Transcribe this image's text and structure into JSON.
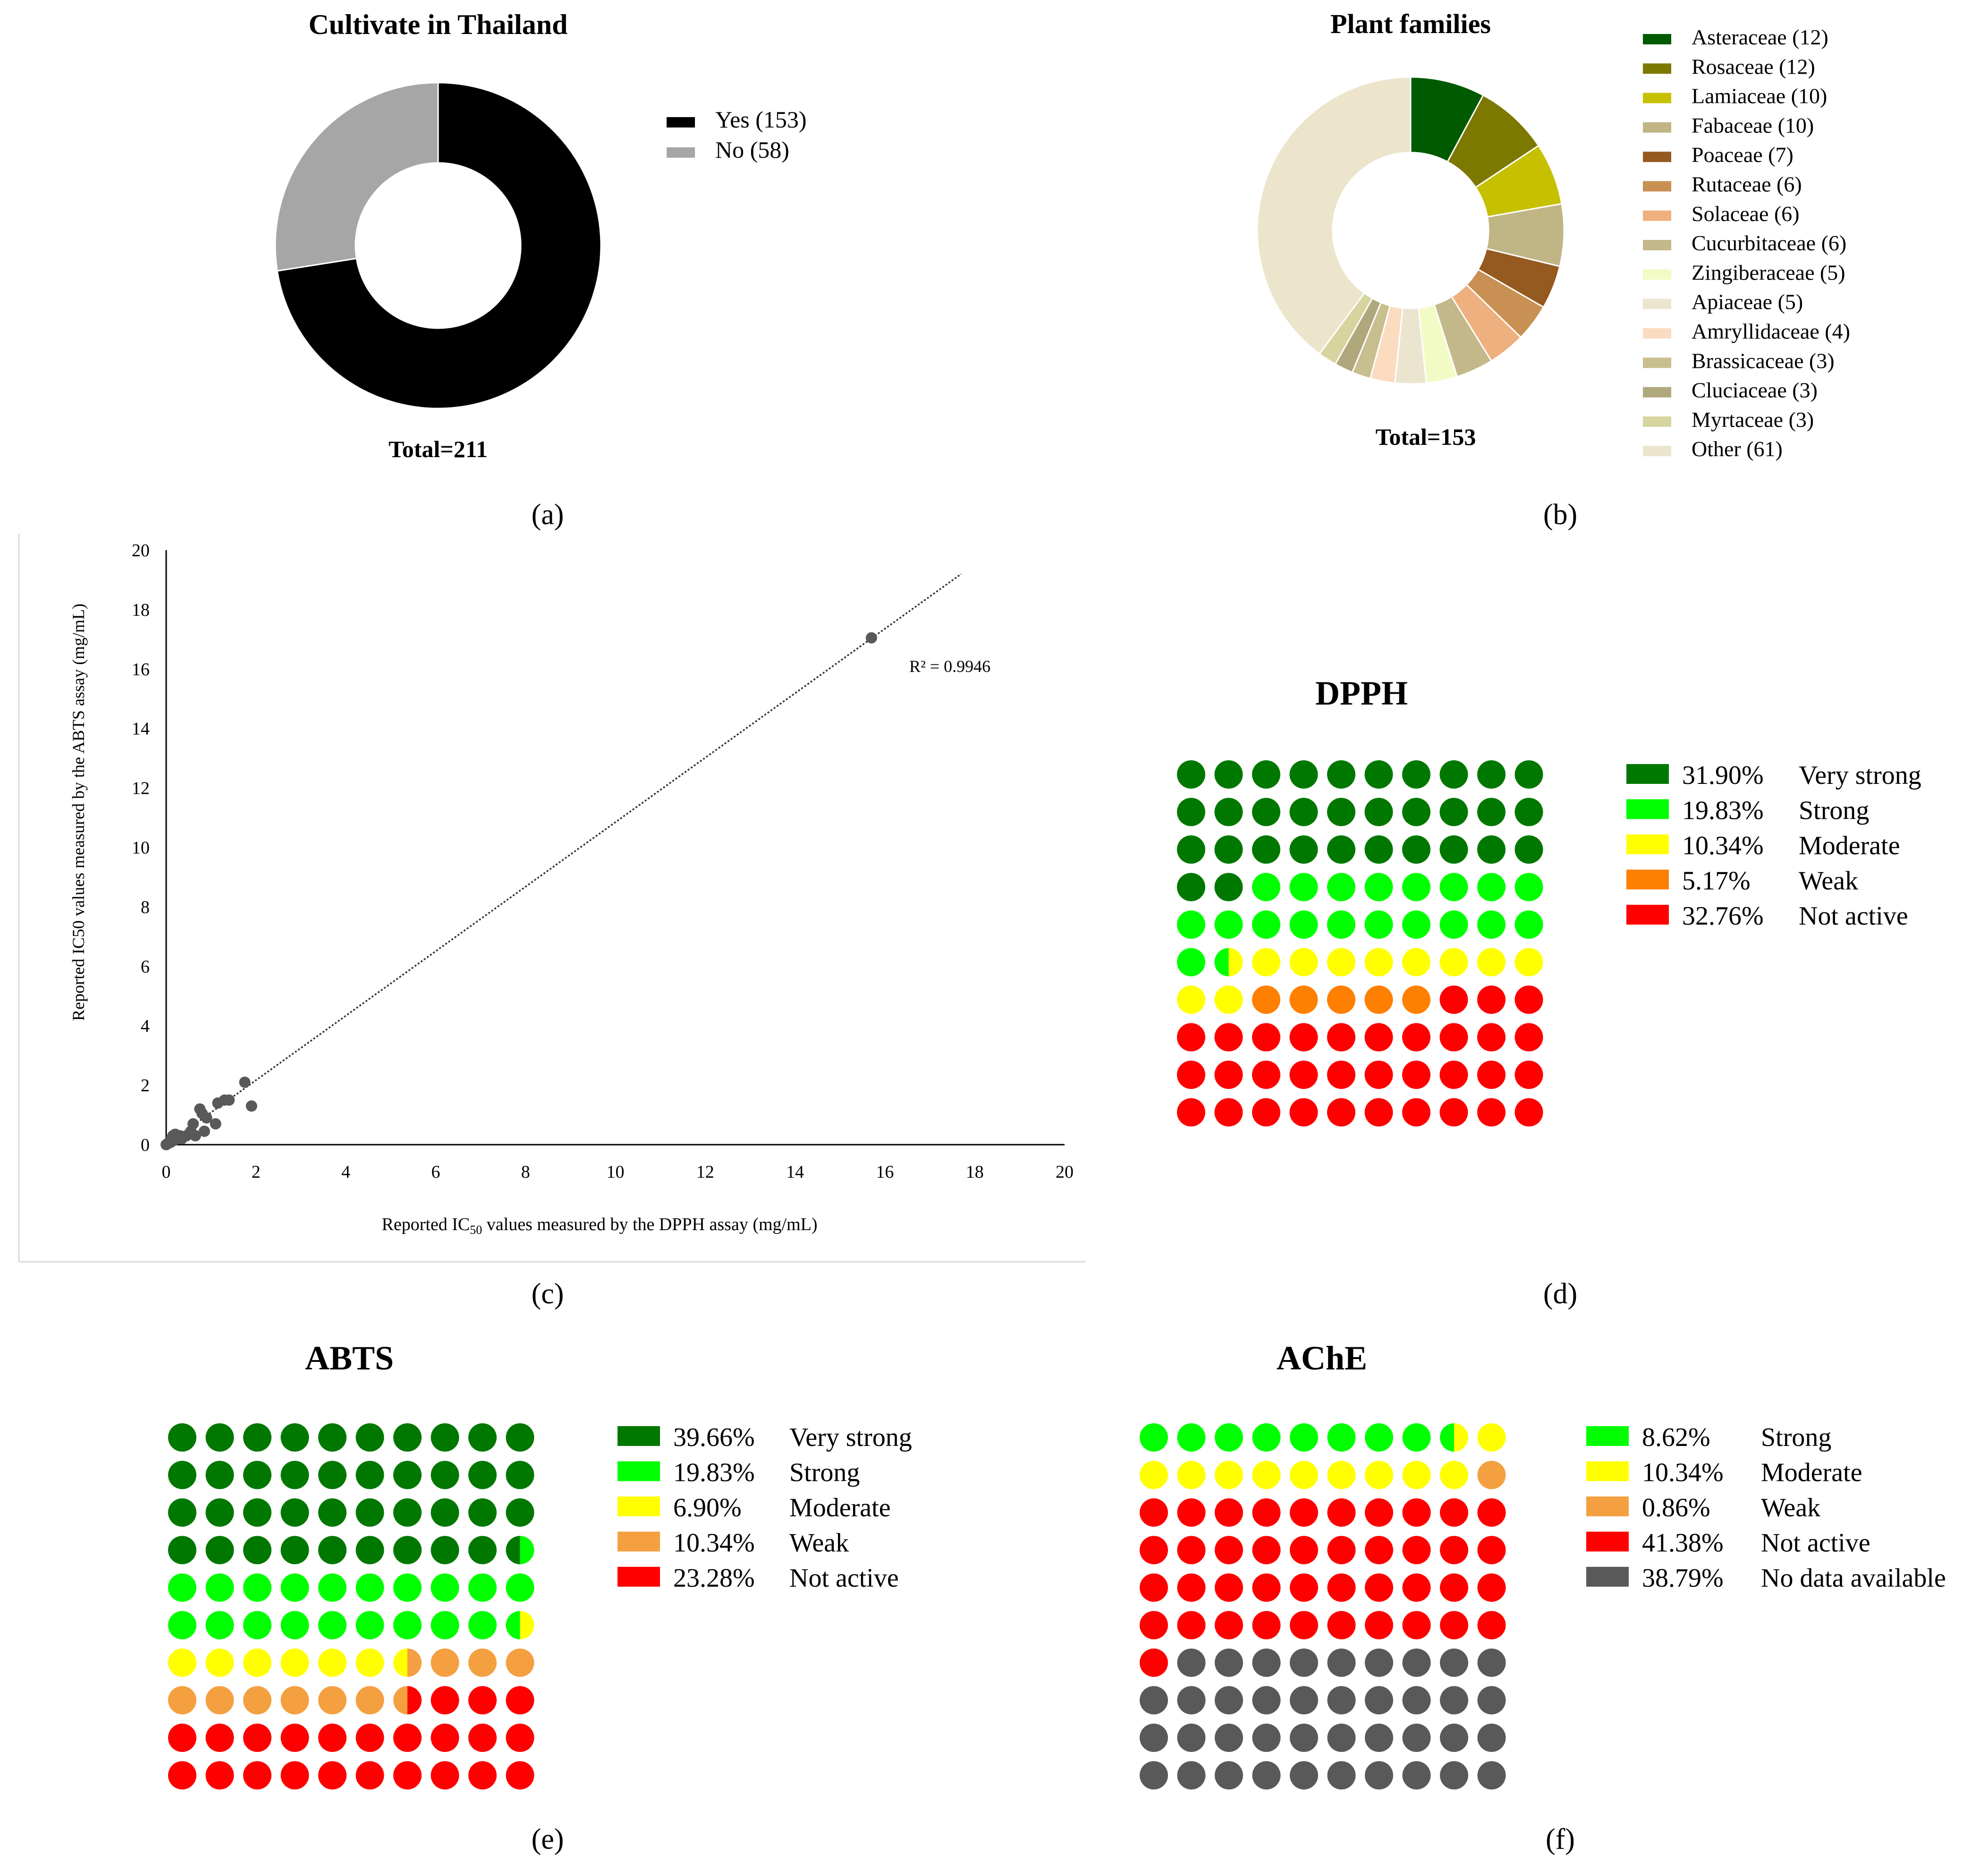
{
  "panel_labels": [
    "(a)",
    "(b)",
    "(c)",
    "(d)",
    "(e)",
    "(f)"
  ],
  "colors": {
    "very_strong": "#007800",
    "strong": "#00ff00",
    "moderate": "#ffff00",
    "weak_orange": "#ff7f00",
    "weak_light": "#f4a040",
    "not_active": "#ff0000",
    "no_data": "#595959",
    "yes": "#000000",
    "no": "#a6a6a6"
  },
  "chart_data": [
    {
      "id": "a",
      "type": "pie",
      "donut": true,
      "title": "Cultivate in Thailand",
      "total_label": "Total=211",
      "categories": [
        "Yes (153)",
        "No (58)"
      ],
      "values": [
        153,
        58
      ],
      "colors": [
        "#000000",
        "#a6a6a6"
      ],
      "legend": "right"
    },
    {
      "id": "b",
      "type": "pie",
      "donut": true,
      "title": "Plant families",
      "total_label": "Total=153",
      "categories": [
        "Asteraceae (12)",
        "Rosaceae (12)",
        "Lamiaceae (10)",
        "Fabaceae (10)",
        "Poaceae (7)",
        "Rutaceae (6)",
        "Solaceae (6)",
        "Cucurbitaceae (6)",
        "Zingiberaceae (5)",
        "Apiaceae (5)",
        "Amryllidaceae (4)",
        "Brassicaceae (3)",
        "Cluciaceae (3)",
        "Myrtaceae (3)",
        "Other (61)"
      ],
      "values": [
        12,
        12,
        10,
        10,
        7,
        6,
        6,
        6,
        5,
        5,
        4,
        3,
        3,
        3,
        61
      ],
      "colors": [
        "#005a00",
        "#7d7800",
        "#c6c000",
        "#c0b585",
        "#955a1f",
        "#c89052",
        "#eeb07e",
        "#c3b88a",
        "#f2fbc4",
        "#ebe5d0",
        "#fbdcc1",
        "#c7bf8e",
        "#b0a87d",
        "#d7d4a0",
        "#ece5cc"
      ],
      "legend": "right"
    },
    {
      "id": "c",
      "type": "scatter",
      "xlabel_pre": "Reported IC",
      "xlabel_sub": "50",
      "xlabel_post": " values measured by the DPPH assay (mg/mL)",
      "ylabel": "Reported IC50 values measured by the ABTS assay (mg/mL)",
      "xlim": [
        0,
        20
      ],
      "ylim": [
        0,
        20
      ],
      "xticks": [
        "0",
        "2",
        "4",
        "6",
        "8",
        "10",
        "12",
        "14",
        "16",
        "18",
        "20"
      ],
      "yticks": [
        "0",
        "2",
        "4",
        "6",
        "8",
        "10",
        "12",
        "14",
        "16",
        "18",
        "20"
      ],
      "annotation": "R² = 0.9946",
      "trendline": {
        "x0": 0,
        "y0": 0,
        "x1": 17.7,
        "y1": 19.2
      },
      "points": [
        {
          "x": 0.0,
          "y": 0.0
        },
        {
          "x": 0.05,
          "y": 0.05
        },
        {
          "x": 0.08,
          "y": 0.12
        },
        {
          "x": 0.1,
          "y": 0.08
        },
        {
          "x": 0.12,
          "y": 0.2
        },
        {
          "x": 0.15,
          "y": 0.3
        },
        {
          "x": 0.18,
          "y": 0.15
        },
        {
          "x": 0.2,
          "y": 0.35
        },
        {
          "x": 0.25,
          "y": 0.25
        },
        {
          "x": 0.3,
          "y": 0.3
        },
        {
          "x": 0.35,
          "y": 0.2
        },
        {
          "x": 0.45,
          "y": 0.3
        },
        {
          "x": 0.55,
          "y": 0.45
        },
        {
          "x": 0.6,
          "y": 0.7
        },
        {
          "x": 0.65,
          "y": 0.3
        },
        {
          "x": 0.75,
          "y": 1.2
        },
        {
          "x": 0.8,
          "y": 1.05
        },
        {
          "x": 0.85,
          "y": 0.45
        },
        {
          "x": 0.9,
          "y": 0.9
        },
        {
          "x": 1.1,
          "y": 0.7
        },
        {
          "x": 1.15,
          "y": 1.4
        },
        {
          "x": 1.3,
          "y": 1.5
        },
        {
          "x": 1.4,
          "y": 1.5
        },
        {
          "x": 1.75,
          "y": 2.1
        },
        {
          "x": 1.9,
          "y": 1.3
        },
        {
          "x": 15.7,
          "y": 17.05
        }
      ]
    },
    {
      "id": "d",
      "type": "waffle",
      "title": "DPPH",
      "categories": [
        {
          "percent": "31.90%",
          "name": "Very strong",
          "color": "#007800"
        },
        {
          "percent": "19.83%",
          "name": "Strong",
          "color": "#00ff00"
        },
        {
          "percent": "10.34%",
          "name": "Moderate",
          "color": "#ffff00"
        },
        {
          "percent": "5.17%",
          "name": "Weak",
          "color": "#ff7f00"
        },
        {
          "percent": "32.76%",
          "name": "Not active",
          "color": "#ff0000"
        }
      ],
      "cells": [
        "0",
        "0",
        "0",
        "0",
        "0",
        "0",
        "0",
        "0",
        "0",
        "0",
        "0",
        "0",
        "0",
        "0",
        "0",
        "0",
        "0",
        "0",
        "0",
        "0",
        "0",
        "0",
        "0",
        "0",
        "0",
        "0",
        "0",
        "0",
        "0",
        "0",
        "0",
        "0",
        "1",
        "1",
        "1",
        "1",
        "1",
        "1",
        "1",
        "1",
        "1",
        "1",
        "1",
        "1",
        "1",
        "1",
        "1",
        "1",
        "1",
        "1",
        "1",
        "1|2",
        "2",
        "2",
        "2",
        "2",
        "2",
        "2",
        "2",
        "2",
        "2",
        "2",
        "3",
        "3",
        "3",
        "3",
        "3",
        "4",
        "4",
        "4",
        "4",
        "4",
        "4",
        "4",
        "4",
        "4",
        "4",
        "4",
        "4",
        "4",
        "4",
        "4",
        "4",
        "4",
        "4",
        "4",
        "4",
        "4",
        "4",
        "4",
        "4",
        "4",
        "4",
        "4",
        "4",
        "4",
        "4",
        "4",
        "4",
        "4"
      ]
    },
    {
      "id": "e",
      "type": "waffle",
      "title": "ABTS",
      "categories": [
        {
          "percent": "39.66%",
          "name": "Very strong",
          "color": "#007800"
        },
        {
          "percent": "19.83%",
          "name": "Strong",
          "color": "#00ff00"
        },
        {
          "percent": "6.90%",
          "name": "Moderate",
          "color": "#ffff00"
        },
        {
          "percent": "10.34%",
          "name": "Weak",
          "color": "#f4a040"
        },
        {
          "percent": "23.28%",
          "name": "Not active",
          "color": "#ff0000"
        }
      ],
      "cells": [
        "0",
        "0",
        "0",
        "0",
        "0",
        "0",
        "0",
        "0",
        "0",
        "0",
        "0",
        "0",
        "0",
        "0",
        "0",
        "0",
        "0",
        "0",
        "0",
        "0",
        "0",
        "0",
        "0",
        "0",
        "0",
        "0",
        "0",
        "0",
        "0",
        "0",
        "0",
        "0",
        "0",
        "0",
        "0",
        "0",
        "0",
        "0",
        "0",
        "0|1",
        "1",
        "1",
        "1",
        "1",
        "1",
        "1",
        "1",
        "1",
        "1",
        "1",
        "1",
        "1",
        "1",
        "1",
        "1",
        "1",
        "1",
        "1",
        "1",
        "1|2",
        "2",
        "2",
        "2",
        "2",
        "2",
        "2",
        "2|3",
        "3",
        "3",
        "3",
        "3",
        "3",
        "3",
        "3",
        "3",
        "3",
        "3|4",
        "4",
        "4",
        "4",
        "4",
        "4",
        "4",
        "4",
        "4",
        "4",
        "4",
        "4",
        "4",
        "4",
        "4",
        "4",
        "4",
        "4",
        "4",
        "4",
        "4",
        "4",
        "4",
        "4"
      ]
    },
    {
      "id": "f",
      "type": "waffle",
      "title": "AChE",
      "categories": [
        {
          "percent": "8.62%",
          "name": "Strong",
          "color": "#00ff00"
        },
        {
          "percent": "10.34%",
          "name": "Moderate",
          "color": "#ffff00"
        },
        {
          "percent": "0.86%",
          "name": "Weak",
          "color": "#f4a040"
        },
        {
          "percent": "41.38%",
          "name": "Not active",
          "color": "#ff0000"
        },
        {
          "percent": "38.79%",
          "name": "No data available",
          "color": "#595959"
        }
      ],
      "cells": [
        "0",
        "0",
        "0",
        "0",
        "0",
        "0",
        "0",
        "0",
        "0|1",
        "1",
        "1",
        "1",
        "1",
        "1",
        "1",
        "1",
        "1",
        "1",
        "1",
        "2",
        "3",
        "3",
        "3",
        "3",
        "3",
        "3",
        "3",
        "3",
        "3",
        "3",
        "3",
        "3",
        "3",
        "3",
        "3",
        "3",
        "3",
        "3",
        "3",
        "3",
        "3",
        "3",
        "3",
        "3",
        "3",
        "3",
        "3",
        "3",
        "3",
        "3",
        "3",
        "3",
        "3",
        "3",
        "3",
        "3",
        "3",
        "3",
        "3",
        "3",
        "3",
        "4",
        "4",
        "4",
        "4",
        "4",
        "4",
        "4",
        "4",
        "4",
        "4",
        "4",
        "4",
        "4",
        "4",
        "4",
        "4",
        "4",
        "4",
        "4",
        "4",
        "4",
        "4",
        "4",
        "4",
        "4",
        "4",
        "4",
        "4",
        "4",
        "4",
        "4",
        "4",
        "4",
        "4",
        "4",
        "4",
        "4",
        "4",
        "4"
      ]
    }
  ]
}
